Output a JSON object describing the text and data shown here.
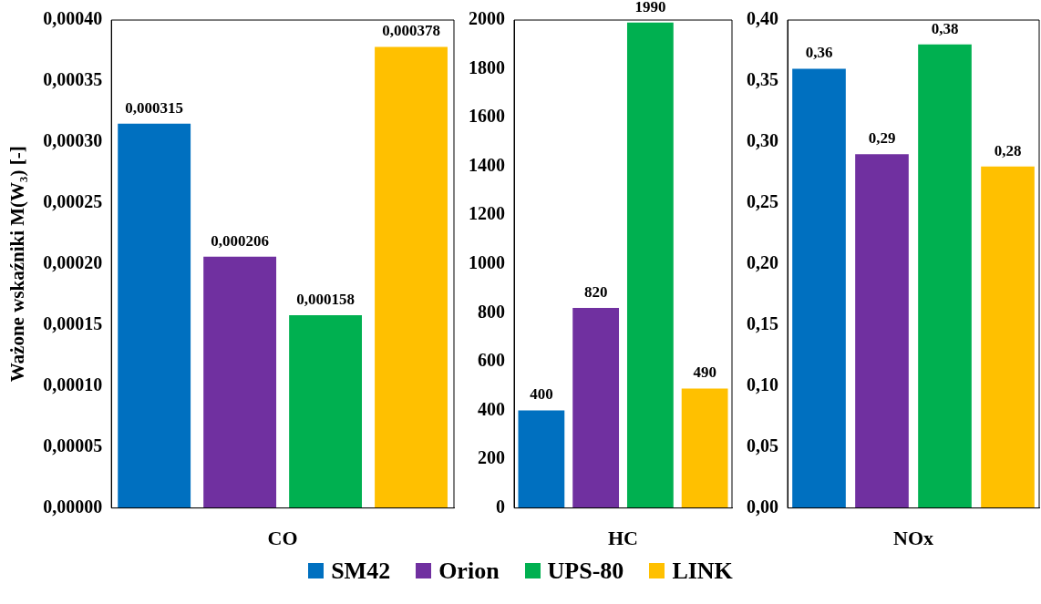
{
  "chart_data": [
    {
      "type": "bar",
      "ylabel": "Ważone wskaźniki M(W₃) [-]",
      "xlabel": "CO",
      "categories": [
        null,
        null,
        null,
        null
      ],
      "ylim": [
        0,
        0.0004
      ],
      "yticks": [
        {
          "value": 0,
          "label": "0,00000"
        },
        {
          "value": 5e-05,
          "label": "0,00005"
        },
        {
          "value": 0.0001,
          "label": "0,00010"
        },
        {
          "value": 0.00015,
          "label": "0,00015"
        },
        {
          "value": 0.0002,
          "label": "0,00020"
        },
        {
          "value": 0.00025,
          "label": "0,00025"
        },
        {
          "value": 0.0003,
          "label": "0,00030"
        },
        {
          "value": 0.00035,
          "label": "0,00035"
        },
        {
          "value": 0.0004,
          "label": "0,00040"
        }
      ],
      "legend": "bottom",
      "series": [
        {
          "name": "SM42",
          "color": "#0070c0",
          "values": [
            0.000315,
            null,
            null,
            null
          ],
          "value_labels": [
            "0,000315",
            null,
            null,
            null
          ]
        },
        {
          "name": "Orion",
          "color": "#7030a0",
          "values": [
            null,
            0.000206,
            null,
            null
          ],
          "value_labels": [
            null,
            "0,000206",
            null,
            null
          ]
        },
        {
          "name": "UPS-80",
          "color": "#00b050",
          "values": [
            null,
            null,
            0.000158,
            null
          ],
          "value_labels": [
            null,
            null,
            "0,000158",
            null
          ]
        },
        {
          "name": "LINK",
          "color": "#ffc000",
          "values": [
            null,
            null,
            null,
            0.000378
          ],
          "value_labels": [
            null,
            null,
            null,
            "0,000378"
          ]
        }
      ]
    },
    {
      "type": "bar",
      "xlabel": "HC",
      "categories": [
        null,
        null,
        null,
        null
      ],
      "ylim": [
        0,
        2000
      ],
      "yticks": [
        0,
        200,
        400,
        600,
        800,
        1000,
        1200,
        1400,
        1600,
        1800,
        2000
      ],
      "series": [
        {
          "color": "#0070c0",
          "values": [
            400,
            null,
            null,
            null
          ],
          "value_labels": [
            "400",
            null,
            null,
            null
          ]
        },
        {
          "color": "#7030a0",
          "values": [
            null,
            820,
            null,
            null
          ],
          "value_labels": [
            null,
            "820",
            null,
            null
          ]
        },
        {
          "color": "#00b050",
          "values": [
            null,
            null,
            1990,
            null
          ],
          "value_labels": [
            null,
            null,
            "1990",
            null
          ]
        },
        {
          "color": "#ffc000",
          "values": [
            null,
            null,
            null,
            490
          ],
          "value_labels": [
            null,
            null,
            null,
            "490"
          ]
        }
      ]
    },
    {
      "type": "bar",
      "xlabel": "NOx",
      "categories": [
        null,
        null,
        null,
        null
      ],
      "ylim": [
        0,
        0.4
      ],
      "yticks": [
        {
          "value": 0,
          "label": "0,00"
        },
        {
          "value": 0.05,
          "label": "0,05"
        },
        {
          "value": 0.1,
          "label": "0,10"
        },
        {
          "value": 0.15,
          "label": "0,15"
        },
        {
          "value": 0.2,
          "label": "0,20"
        },
        {
          "value": 0.25,
          "label": "0,25"
        },
        {
          "value": 0.3,
          "label": "0,30"
        },
        {
          "value": 0.35,
          "label": "0,35"
        },
        {
          "value": 0.4,
          "label": "0,40"
        }
      ],
      "series": [
        {
          "color": "#0070c0",
          "values": [
            0.36,
            null,
            null,
            null
          ],
          "value_labels": [
            "0,36",
            null,
            null,
            null
          ]
        },
        {
          "color": "#7030a0",
          "values": [
            null,
            0.29,
            null,
            null
          ],
          "value_labels": [
            null,
            "0,29",
            null,
            null
          ]
        },
        {
          "color": "#00b050",
          "values": [
            null,
            null,
            0.38,
            null
          ],
          "value_labels": [
            null,
            null,
            "0,38",
            null
          ]
        },
        {
          "color": "#ffc000",
          "values": [
            null,
            null,
            null,
            0.28
          ],
          "value_labels": [
            null,
            null,
            null,
            "0,28"
          ]
        }
      ]
    }
  ]
}
